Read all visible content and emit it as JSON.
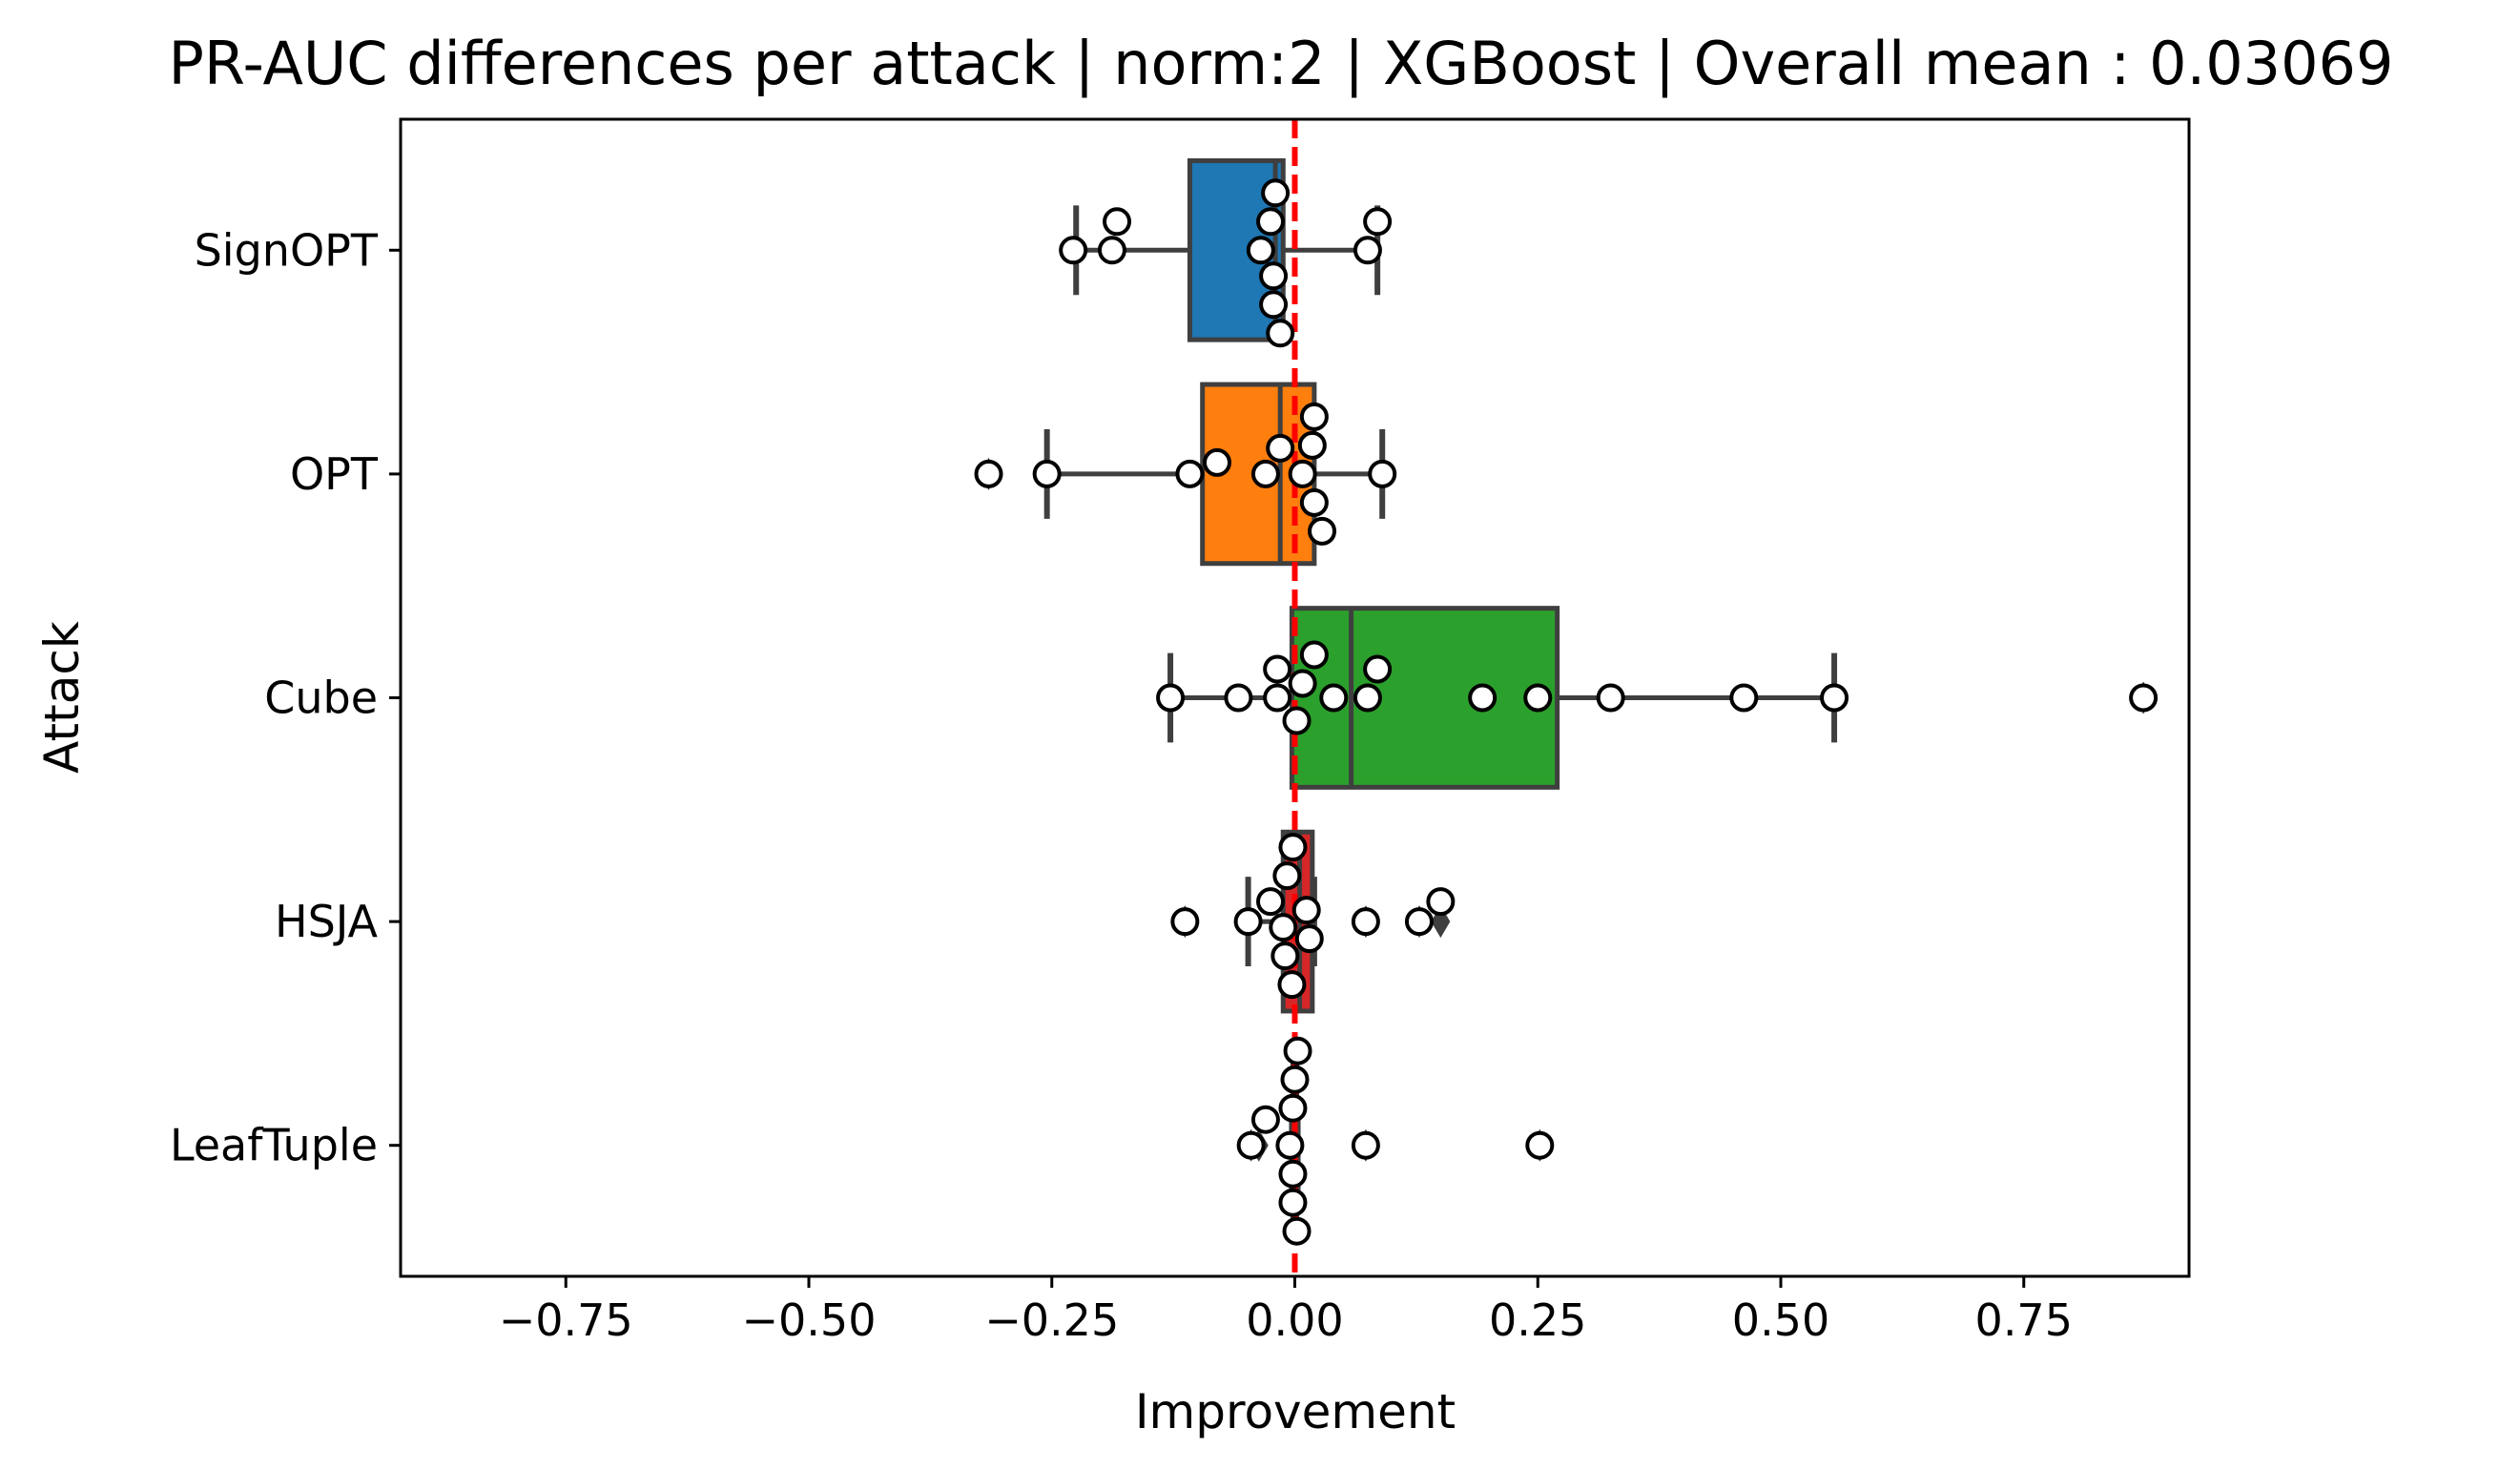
{
  "chart_data": {
    "type": "box",
    "orientation": "horizontal",
    "title": "PR-AUC differences per attack | norm:2 | XGBoost | Overall mean : 0.03069",
    "xlabel": "Improvement",
    "ylabel": "Attack",
    "xlim": [
      -0.92,
      0.92
    ],
    "xticks": [
      -0.75,
      -0.5,
      -0.25,
      0.0,
      0.25,
      0.5,
      0.75
    ],
    "xtick_labels": [
      "−0.75",
      "−0.50",
      "−0.25",
      "0.00",
      "0.25",
      "0.50",
      "0.75"
    ],
    "reference_line": {
      "x": 0.0,
      "color": "#ff0000",
      "style": "dashed"
    },
    "categories": [
      "SignOPT",
      "OPT",
      "Cube",
      "HSJA",
      "LeafTuple"
    ],
    "boxes": [
      {
        "name": "SignOPT",
        "color": "#1f77b4",
        "q1": -0.108,
        "median": -0.02,
        "q3": -0.012,
        "whisker_low": -0.225,
        "whisker_high": 0.085,
        "fliers": []
      },
      {
        "name": "OPT",
        "color": "#ff7f0e",
        "q1": -0.095,
        "median": -0.015,
        "q3": 0.02,
        "whisker_low": -0.255,
        "whisker_high": 0.09,
        "fliers": [
          -0.315
        ]
      },
      {
        "name": "Cube",
        "color": "#2ca02c",
        "q1": -0.003,
        "median": 0.058,
        "q3": 0.27,
        "whisker_low": -0.128,
        "whisker_high": 0.555,
        "fliers": [
          0.873
        ]
      },
      {
        "name": "HSJA",
        "color": "#d62728",
        "q1": -0.012,
        "median": 0.005,
        "q3": 0.018,
        "whisker_low": -0.048,
        "whisker_high": 0.02,
        "fliers": [
          -0.113,
          0.073,
          0.128,
          0.15
        ]
      },
      {
        "name": "LeafTuple",
        "color": "#9467bd",
        "q1": -0.002,
        "median": 0.0,
        "q3": 0.002,
        "whisker_low": -0.003,
        "whisker_high": 0.003,
        "fliers": [
          -0.045,
          -0.037,
          0.073,
          0.252
        ]
      }
    ],
    "points": [
      {
        "attack": "SignOPT",
        "values": [
          -0.228,
          -0.188,
          -0.183,
          -0.035,
          -0.025,
          -0.022,
          -0.022,
          -0.02,
          -0.015,
          0.075,
          0.085
        ]
      },
      {
        "attack": "OPT",
        "values": [
          -0.315,
          -0.255,
          -0.108,
          -0.08,
          -0.03,
          -0.015,
          0.008,
          0.018,
          0.02,
          0.02,
          0.028,
          0.09
        ]
      },
      {
        "attack": "Cube",
        "values": [
          -0.128,
          -0.058,
          -0.018,
          -0.018,
          0.002,
          0.008,
          0.02,
          0.04,
          0.075,
          0.085,
          0.193,
          0.25,
          0.325,
          0.462,
          0.555,
          0.873
        ]
      },
      {
        "attack": "HSJA",
        "values": [
          -0.113,
          -0.048,
          -0.025,
          -0.012,
          -0.01,
          -0.008,
          -0.003,
          -0.002,
          0.012,
          0.015,
          0.073,
          0.128,
          0.15
        ]
      },
      {
        "attack": "LeafTuple",
        "values": [
          -0.045,
          -0.03,
          -0.005,
          -0.002,
          -0.002,
          -0.002,
          0.0,
          0.002,
          0.003,
          0.073,
          0.252
        ]
      }
    ]
  }
}
